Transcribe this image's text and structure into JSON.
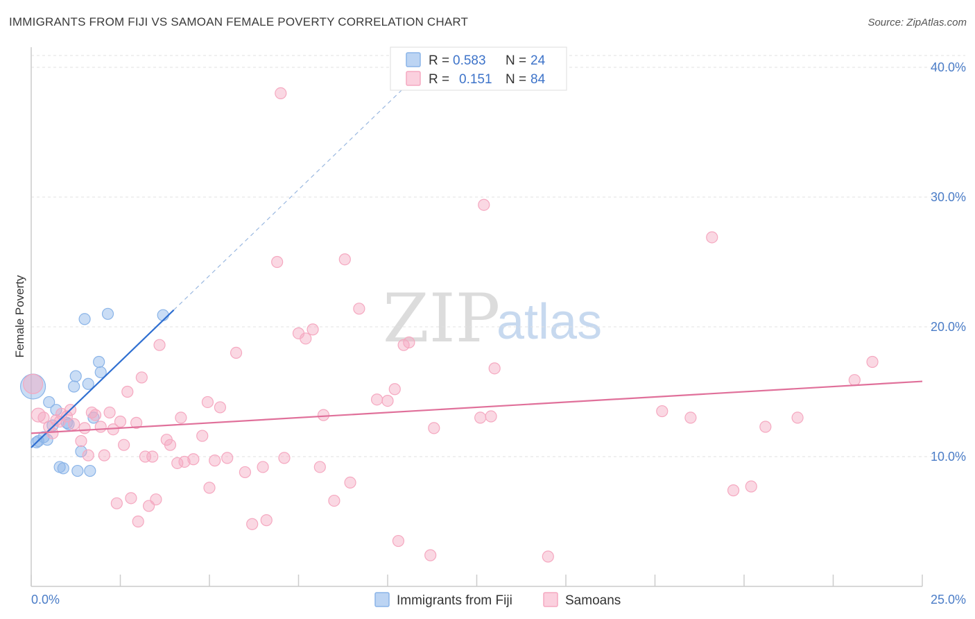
{
  "header": {
    "title": "IMMIGRANTS FROM FIJI VS SAMOAN FEMALE POVERTY CORRELATION CHART",
    "source": "Source: ZipAtlas.com"
  },
  "chart_data": {
    "type": "scatter",
    "title": "IMMIGRANTS FROM FIJI VS SAMOAN FEMALE POVERTY CORRELATION CHART",
    "xlabel": "",
    "ylabel": "Female Poverty",
    "xlim": [
      0,
      25
    ],
    "ylim": [
      0,
      40
    ],
    "x_tick_labels": {
      "min": "0.0%",
      "max": "25.0%"
    },
    "y_ticks": [
      10,
      20,
      30,
      40
    ],
    "y_tick_labels": [
      "10.0%",
      "20.0%",
      "30.0%",
      "40.0%"
    ],
    "grid": true,
    "watermark": {
      "part1": "ZIP",
      "part2": "atlas"
    },
    "legend_stats": [
      {
        "r_label": "R = ",
        "r_value": "0.583",
        "n_label": "N = ",
        "n_value": "24"
      },
      {
        "r_label": "R = ",
        "r_value": "0.151",
        "n_label": "N = ",
        "n_value": "84"
      }
    ],
    "series": [
      {
        "name": "Immigrants from Fiji",
        "color": "#8ab4e8",
        "line_color": "#2f6fd1",
        "trend": {
          "x0": 0.0,
          "y0": 10.7,
          "x1": 4.0,
          "y1": 21.3,
          "dash_to_x": 10.6
        },
        "points": [
          [
            0.05,
            15.4,
            18
          ],
          [
            0.2,
            11.2,
            8
          ],
          [
            0.35,
            11.5,
            8
          ],
          [
            0.5,
            14.2,
            8
          ],
          [
            0.6,
            12.4,
            8
          ],
          [
            0.7,
            13.6,
            8
          ],
          [
            0.8,
            9.2,
            8
          ],
          [
            0.9,
            9.1,
            8
          ],
          [
            1.0,
            12.6,
            8
          ],
          [
            1.05,
            12.5,
            8
          ],
          [
            1.2,
            15.4,
            8
          ],
          [
            1.25,
            16.2,
            8
          ],
          [
            1.3,
            8.9,
            8
          ],
          [
            1.4,
            10.4,
            8
          ],
          [
            1.5,
            20.6,
            8
          ],
          [
            1.6,
            15.6,
            8
          ],
          [
            1.65,
            8.9,
            8
          ],
          [
            1.75,
            13.0,
            8
          ],
          [
            1.9,
            17.3,
            8
          ],
          [
            1.95,
            16.5,
            8
          ],
          [
            2.15,
            21.0,
            8
          ],
          [
            3.7,
            20.9,
            8
          ],
          [
            0.15,
            11.1,
            8
          ],
          [
            0.45,
            11.3,
            8
          ]
        ]
      },
      {
        "name": "Samoans",
        "color": "#f5a8c0",
        "line_color": "#e0709a",
        "trend": {
          "x0": 0.0,
          "y0": 11.8,
          "x1": 25.0,
          "y1": 15.8
        },
        "points": [
          [
            0.05,
            15.6,
            14
          ],
          [
            0.2,
            13.2,
            10
          ],
          [
            0.35,
            13.0,
            8
          ],
          [
            0.5,
            12.3,
            8
          ],
          [
            0.6,
            11.8,
            8
          ],
          [
            0.7,
            12.8,
            8
          ],
          [
            0.85,
            13.3,
            8
          ],
          [
            1.0,
            13.1,
            8
          ],
          [
            1.1,
            13.6,
            8
          ],
          [
            1.2,
            12.5,
            8
          ],
          [
            1.4,
            11.2,
            8
          ],
          [
            1.5,
            12.2,
            8
          ],
          [
            1.6,
            10.1,
            8
          ],
          [
            1.7,
            13.4,
            8
          ],
          [
            1.8,
            13.2,
            8
          ],
          [
            1.95,
            12.3,
            8
          ],
          [
            2.05,
            10.1,
            8
          ],
          [
            2.2,
            13.4,
            8
          ],
          [
            2.3,
            12.1,
            8
          ],
          [
            2.4,
            6.4,
            8
          ],
          [
            2.5,
            12.7,
            8
          ],
          [
            2.6,
            10.9,
            8
          ],
          [
            2.7,
            15.0,
            8
          ],
          [
            2.8,
            6.8,
            8
          ],
          [
            2.95,
            12.6,
            8
          ],
          [
            3.0,
            5.0,
            8
          ],
          [
            3.1,
            16.1,
            8
          ],
          [
            3.2,
            10.0,
            8
          ],
          [
            3.3,
            6.2,
            8
          ],
          [
            3.4,
            10.0,
            8
          ],
          [
            3.5,
            6.7,
            8
          ],
          [
            3.6,
            18.6,
            8
          ],
          [
            3.8,
            11.3,
            8
          ],
          [
            3.9,
            10.9,
            8
          ],
          [
            4.1,
            9.5,
            8
          ],
          [
            4.2,
            13.0,
            8
          ],
          [
            4.3,
            9.6,
            8
          ],
          [
            4.55,
            9.8,
            8
          ],
          [
            4.8,
            11.6,
            8
          ],
          [
            4.95,
            14.2,
            8
          ],
          [
            5.0,
            7.6,
            8
          ],
          [
            5.15,
            9.7,
            8
          ],
          [
            5.3,
            13.8,
            8
          ],
          [
            5.5,
            9.9,
            8
          ],
          [
            5.75,
            18.0,
            8
          ],
          [
            6.0,
            8.8,
            8
          ],
          [
            6.2,
            4.8,
            8
          ],
          [
            6.5,
            9.2,
            8
          ],
          [
            6.6,
            5.1,
            8
          ],
          [
            6.9,
            25.0,
            8
          ],
          [
            7.0,
            38.0,
            8
          ],
          [
            7.1,
            9.9,
            8
          ],
          [
            7.5,
            19.5,
            8
          ],
          [
            7.7,
            19.1,
            8
          ],
          [
            7.9,
            19.8,
            8
          ],
          [
            8.1,
            9.2,
            8
          ],
          [
            8.2,
            13.2,
            8
          ],
          [
            8.5,
            6.6,
            8
          ],
          [
            8.8,
            25.2,
            8
          ],
          [
            8.95,
            8.0,
            8
          ],
          [
            9.2,
            21.4,
            8
          ],
          [
            9.7,
            14.4,
            8
          ],
          [
            10.0,
            14.3,
            8
          ],
          [
            10.2,
            15.2,
            8
          ],
          [
            10.3,
            3.5,
            8
          ],
          [
            10.45,
            18.6,
            8
          ],
          [
            10.6,
            18.8,
            8
          ],
          [
            11.2,
            2.4,
            8
          ],
          [
            11.3,
            12.2,
            8
          ],
          [
            12.7,
            29.4,
            8
          ],
          [
            12.9,
            13.1,
            8
          ],
          [
            13.0,
            16.8,
            8
          ],
          [
            14.5,
            2.3,
            8
          ],
          [
            17.7,
            13.5,
            8
          ],
          [
            18.5,
            13.0,
            8
          ],
          [
            19.1,
            26.9,
            8
          ],
          [
            19.7,
            7.4,
            8
          ],
          [
            20.2,
            7.7,
            8
          ],
          [
            20.6,
            12.3,
            8
          ],
          [
            21.5,
            13.0,
            8
          ],
          [
            23.1,
            15.9,
            8
          ],
          [
            23.6,
            17.3,
            8
          ],
          [
            12.6,
            13.0,
            8
          ],
          [
            0.8,
            12.7,
            8
          ]
        ]
      }
    ]
  }
}
